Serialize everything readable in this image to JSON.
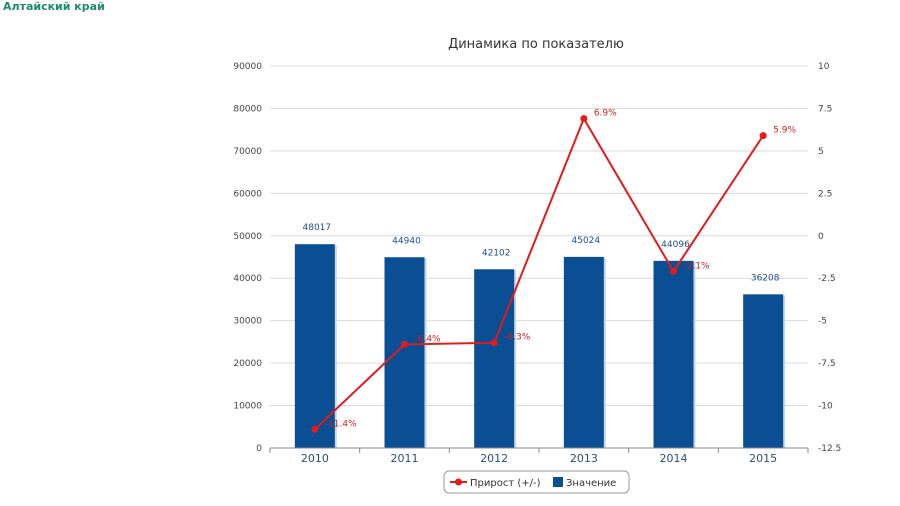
{
  "header": {
    "region": "Алтайский край"
  },
  "colors": {
    "bar": "#0a4f94",
    "bar_shadow": "#c9d6e6",
    "line": "#e31b1b",
    "grid": "#d9d9d9",
    "region": "#1e8a6e"
  },
  "chart_data": {
    "type": "bar",
    "title": "Динамика по показателю",
    "categories": [
      "2010",
      "2011",
      "2012",
      "2013",
      "2014",
      "2015"
    ],
    "ylim": [
      0,
      90000
    ],
    "yticks": [
      0,
      10000,
      20000,
      30000,
      40000,
      50000,
      60000,
      70000,
      80000,
      90000
    ],
    "ylim2": [
      -12.5,
      10
    ],
    "yticks2": [
      "10",
      "7.5",
      "5",
      "2.5",
      "0",
      "-2.5",
      "-5",
      "-7.5",
      "-10",
      "-12.5"
    ],
    "grid": true,
    "legend_position": "bottom-center",
    "series": [
      {
        "name": "Значение",
        "type": "bar",
        "axis": "left",
        "values": [
          48017,
          44940,
          42102,
          45024,
          44096,
          36208
        ],
        "labels": [
          "48017",
          "44940",
          "42102",
          "45024",
          "44096",
          "36208"
        ]
      },
      {
        "name": "Прирост (+/-)",
        "type": "line",
        "axis": "right",
        "values": [
          -11.4,
          -6.4,
          -6.3,
          6.9,
          -2.1,
          5.9
        ],
        "labels": [
          "-11.4%",
          "-6.4%",
          "-6.3%",
          "6.9%",
          "-2.1%",
          "5.9%"
        ]
      }
    ]
  }
}
